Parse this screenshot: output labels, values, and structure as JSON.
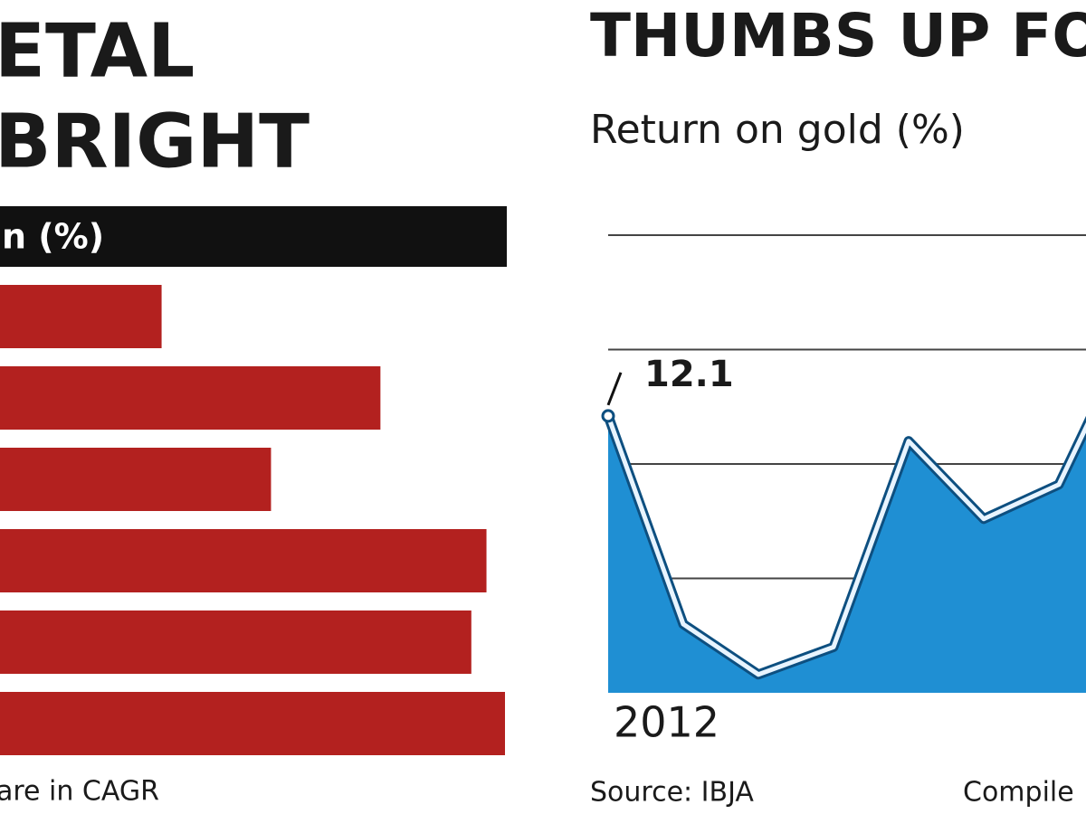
{
  "chart_data": [
    {
      "type": "bar",
      "orientation": "horizontal",
      "title": "ETAL",
      "subtitle": "BRIGHT",
      "header": "n (%)",
      "categories": [
        null,
        null,
        null,
        null,
        null,
        null
      ],
      "values": [
        9.6,
        22.6,
        16.1,
        28.9,
        28.0,
        30.0
      ],
      "color": "#b3211f",
      "footnote": "are in CAGR"
    },
    {
      "type": "area",
      "title": "THUMBS UP FOR",
      "subtitle": "Return on gold (%)",
      "categories": [
        "2012",
        null,
        null,
        null,
        null,
        null,
        null,
        null
      ],
      "series": [
        {
          "name": null,
          "color": "#1f8fd3",
          "values": [
            12.1,
            3.0,
            0.8,
            2.0,
            11.0,
            7.6,
            9.1,
            16.0
          ]
        }
      ],
      "ylim": [
        0,
        20
      ],
      "yticks": [
        5,
        10,
        15,
        20
      ],
      "grid": true,
      "source": "Source: IBJA",
      "credit": "Compile"
    }
  ]
}
